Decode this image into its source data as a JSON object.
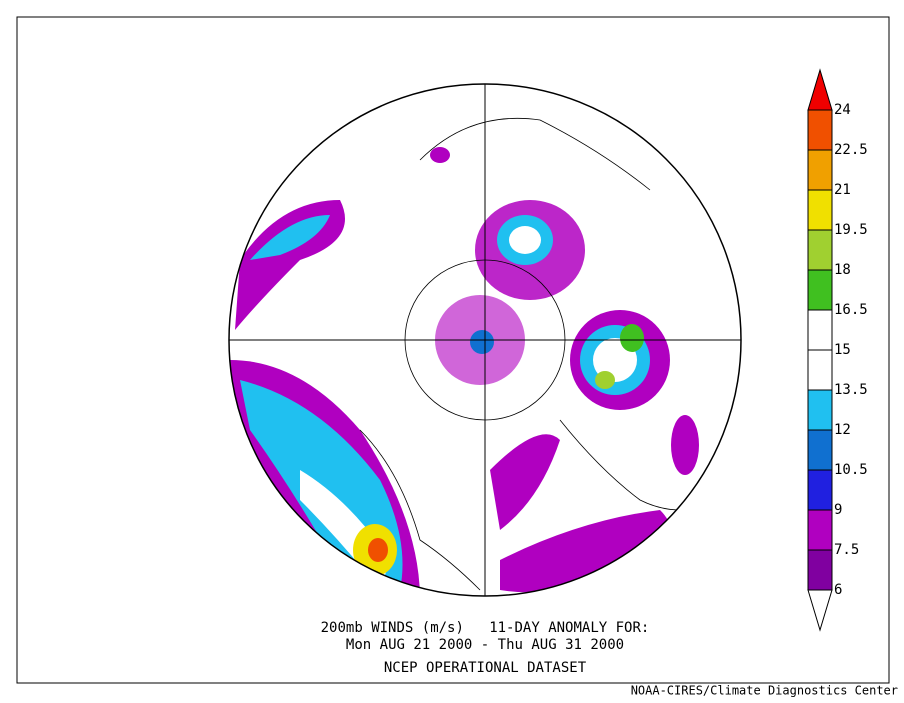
{
  "title_lines": [
    "200mb WINDS (m/s)   11-DAY ANOMALY FOR:",
    "Mon AUG 21 2000 - Thu AUG 31 2000"
  ],
  "dataset": "NCEP OPERATIONAL DATASET",
  "credit": "NOAA-CIRES/Climate Diagnostics Center",
  "colorbar": {
    "labels": [
      24,
      22.5,
      21,
      19.5,
      18,
      16.5,
      15,
      13.5,
      12,
      10.5,
      9,
      7.5,
      6
    ],
    "colors": [
      "#f05000",
      "#f0a000",
      "#f0e000",
      "#a0d030",
      "#40c020",
      "#ffffff",
      "#ffffff",
      "#20c0f0",
      "#1070d0",
      "#2020e0",
      "#b000c0",
      "#8000a0"
    ],
    "above_color": "#f00000",
    "below_color": "#ffffff"
  }
}
